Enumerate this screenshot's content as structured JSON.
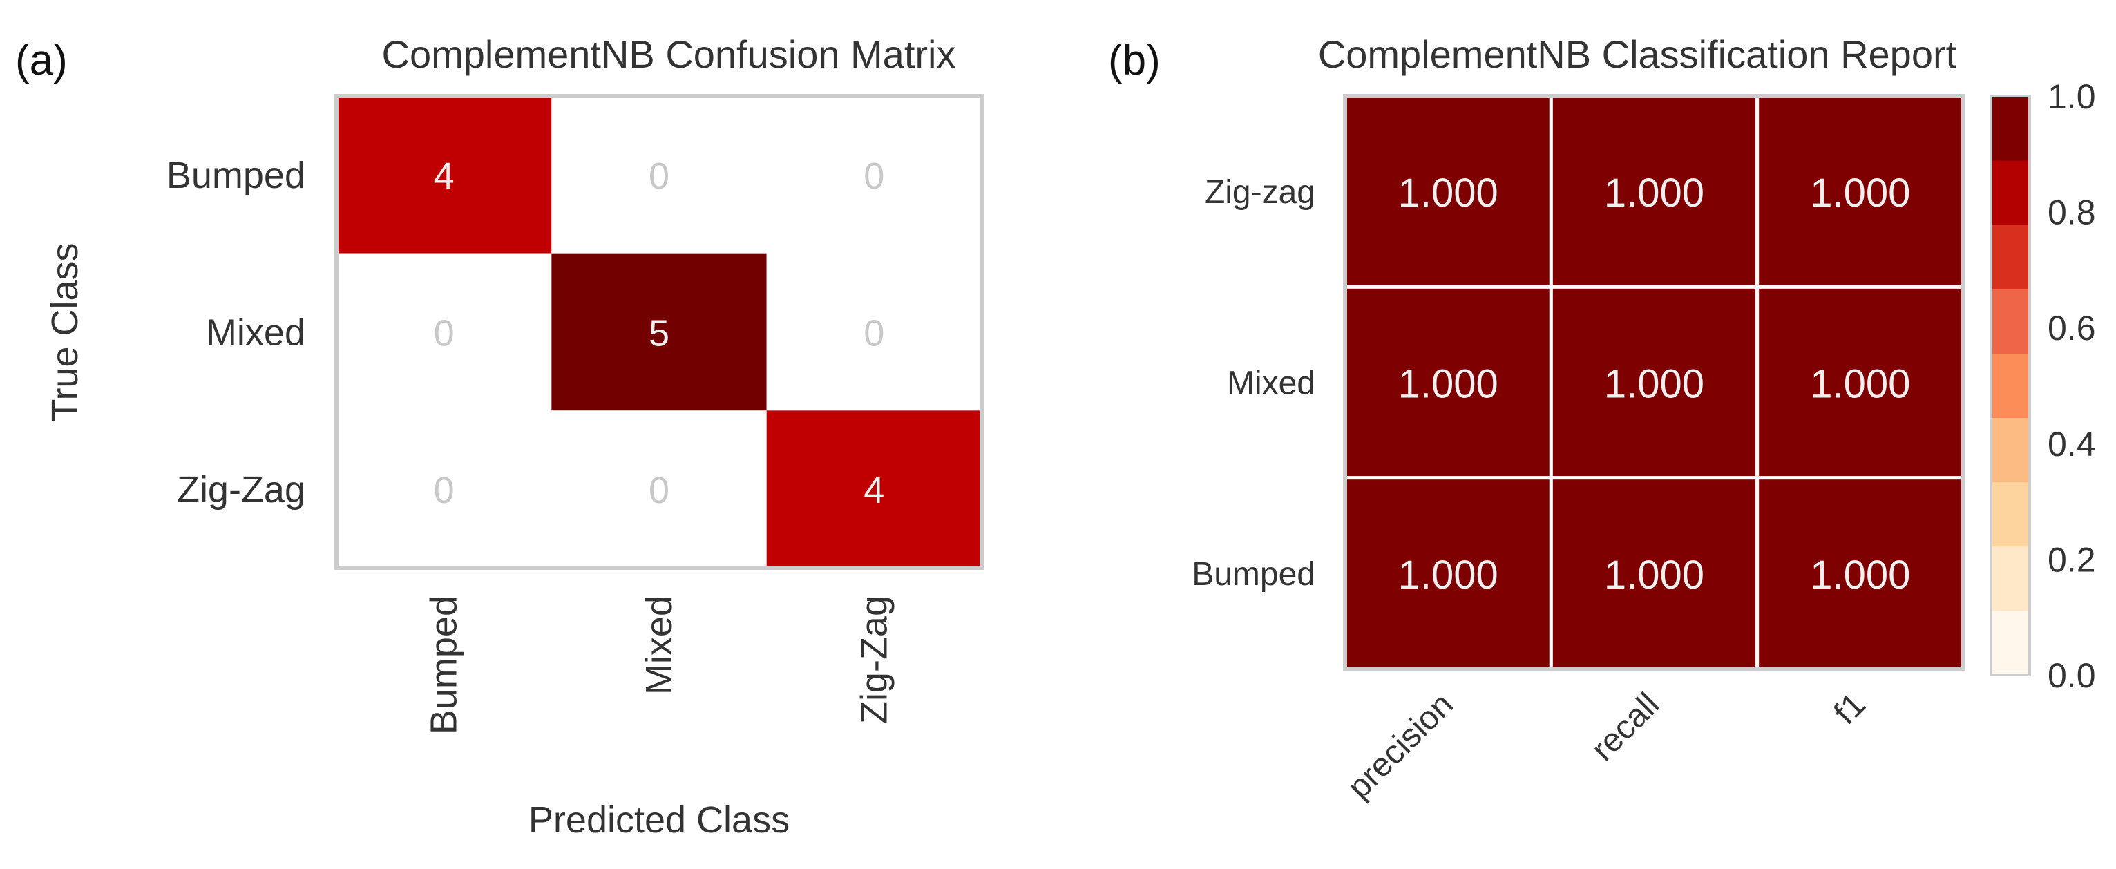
{
  "panels": {
    "a": {
      "label": "(a)"
    },
    "b": {
      "label": "(b)"
    }
  },
  "colors": {
    "cm_scale": [
      "#ffffff",
      "#c00000",
      "#730000"
    ],
    "frame": "#cccccc",
    "zero_text": "#c8c8c8",
    "cell_text": "#f0f0f0",
    "axis_text": "#333333",
    "colorbar": [
      "#fff7ec",
      "#fee8c8",
      "#fdd49e",
      "#fdbb84",
      "#fc8d59",
      "#ef6548",
      "#d7301f",
      "#b30000",
      "#7f0000"
    ]
  },
  "chart_data": [
    {
      "type": "heatmap",
      "title": "ComplementNB Confusion Matrix",
      "xlabel": "Predicted Class",
      "ylabel": "True Class",
      "x_categories": [
        "Bumped",
        "Mixed",
        "Zig-Zag"
      ],
      "y_categories": [
        "Bumped",
        "Mixed",
        "Zig-Zag"
      ],
      "values": [
        [
          4,
          0,
          0
        ],
        [
          0,
          5,
          0
        ],
        [
          0,
          0,
          4
        ]
      ],
      "value_format": "integer",
      "grid": false
    },
    {
      "type": "heatmap",
      "title": "ComplementNB Classification Report",
      "xlabel": "",
      "ylabel": "",
      "x_categories": [
        "precision",
        "recall",
        "f1"
      ],
      "y_categories": [
        "Zig-zag",
        "Mixed",
        "Bumped"
      ],
      "values": [
        [
          1.0,
          1.0,
          1.0
        ],
        [
          1.0,
          1.0,
          1.0
        ],
        [
          1.0,
          1.0,
          1.0
        ]
      ],
      "value_format": "3 decimals",
      "colorbar": {
        "range": [
          0.0,
          1.0
        ],
        "ticks": [
          0.0,
          0.2,
          0.4,
          0.6,
          0.8,
          1.0
        ],
        "tick_labels": [
          "0.0",
          "0.2",
          "0.4",
          "0.6",
          "0.8",
          "1.0"
        ]
      },
      "grid": true
    }
  ]
}
